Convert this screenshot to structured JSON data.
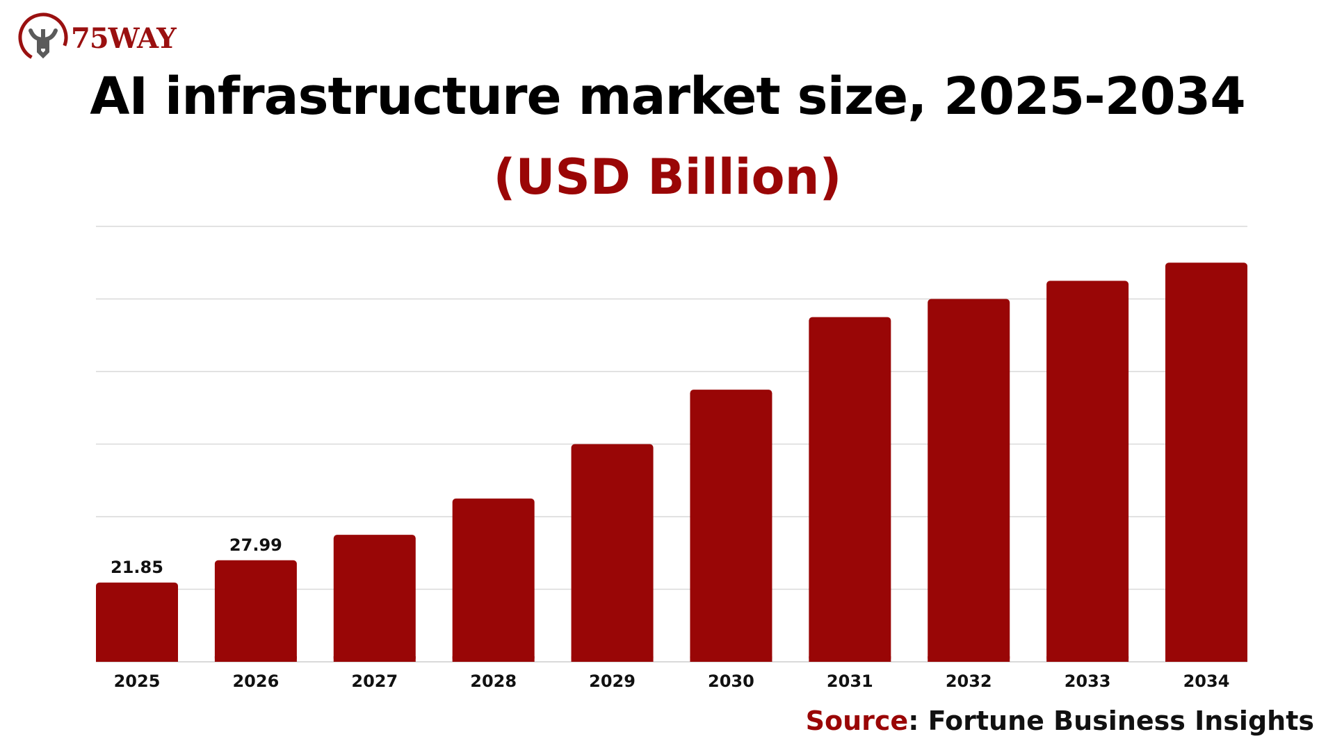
{
  "logo": {
    "text": "75WAY",
    "accent_color": "#9a1010"
  },
  "source": {
    "label": "Source",
    "separator": ": ",
    "value": "Fortune Business Insights"
  },
  "chart_data": {
    "type": "bar",
    "title": "AI infrastructure market size, 2025-2034",
    "subtitle": "(USD Billion)",
    "xlabel": "",
    "ylabel": "",
    "categories": [
      "2025",
      "2026",
      "2027",
      "2028",
      "2029",
      "2030",
      "2031",
      "2032",
      "2033",
      "2034"
    ],
    "values": [
      21.85,
      27.99,
      35,
      45,
      60,
      75,
      95,
      100,
      105,
      110
    ],
    "data_labels": [
      "21.85",
      "27.99",
      "",
      "",
      "",
      "",
      "",
      "",
      "",
      ""
    ],
    "ylim": [
      0,
      120
    ],
    "y_grid_step": 20,
    "grid": true,
    "bar_color": "#990606",
    "grid_color": "#d9d9d9",
    "legend": "none"
  }
}
